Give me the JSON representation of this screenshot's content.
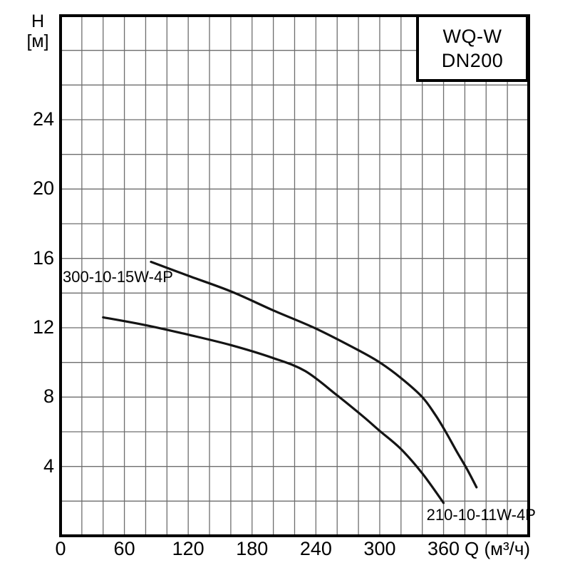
{
  "title_box": {
    "line1": "WQ-W",
    "line2": "DN200"
  },
  "axes": {
    "y_title_line1": "H",
    "y_title_line2": "[м]",
    "x_title": "Q (м³/ч)"
  },
  "colors": {
    "grid": "#6e6e6e",
    "curve": "#141414",
    "border": "#000000",
    "text": "#000000",
    "background": "#ffffff"
  },
  "chart_data": {
    "type": "line",
    "title": "WQ-W DN200",
    "xlabel": "Q (м³/ч)",
    "ylabel": "H [м]",
    "xlim": [
      0,
      440
    ],
    "ylim": [
      0,
      30
    ],
    "x_grid_step": 20,
    "y_grid_step": 2,
    "x_ticks": [
      0,
      60,
      120,
      180,
      240,
      300,
      360
    ],
    "y_ticks": [
      4,
      8,
      12,
      16,
      20,
      24
    ],
    "grid": true,
    "legend_position": "none",
    "series": [
      {
        "name": "300-10-15W-4P",
        "label_anchor": {
          "q": 2,
          "h": 14.9
        },
        "points": [
          [
            85,
            15.8
          ],
          [
            120,
            15.0
          ],
          [
            160,
            14.1
          ],
          [
            200,
            13.0
          ],
          [
            240,
            11.95
          ],
          [
            280,
            10.7
          ],
          [
            300,
            10.0
          ],
          [
            320,
            9.1
          ],
          [
            340,
            8.0
          ],
          [
            352,
            7.0
          ],
          [
            362,
            6.0
          ],
          [
            372,
            4.9
          ],
          [
            382,
            3.85
          ],
          [
            391,
            2.8
          ]
        ]
      },
      {
        "name": "210-10-11W-4P",
        "label_anchor": {
          "q": 344,
          "h": 1.2
        },
        "points": [
          [
            40,
            12.6
          ],
          [
            80,
            12.15
          ],
          [
            120,
            11.6
          ],
          [
            160,
            11.0
          ],
          [
            200,
            10.25
          ],
          [
            230,
            9.5
          ],
          [
            260,
            8.1
          ],
          [
            285,
            6.85
          ],
          [
            300,
            6.05
          ],
          [
            320,
            5.0
          ],
          [
            340,
            3.6
          ],
          [
            360,
            1.9
          ]
        ]
      }
    ]
  }
}
